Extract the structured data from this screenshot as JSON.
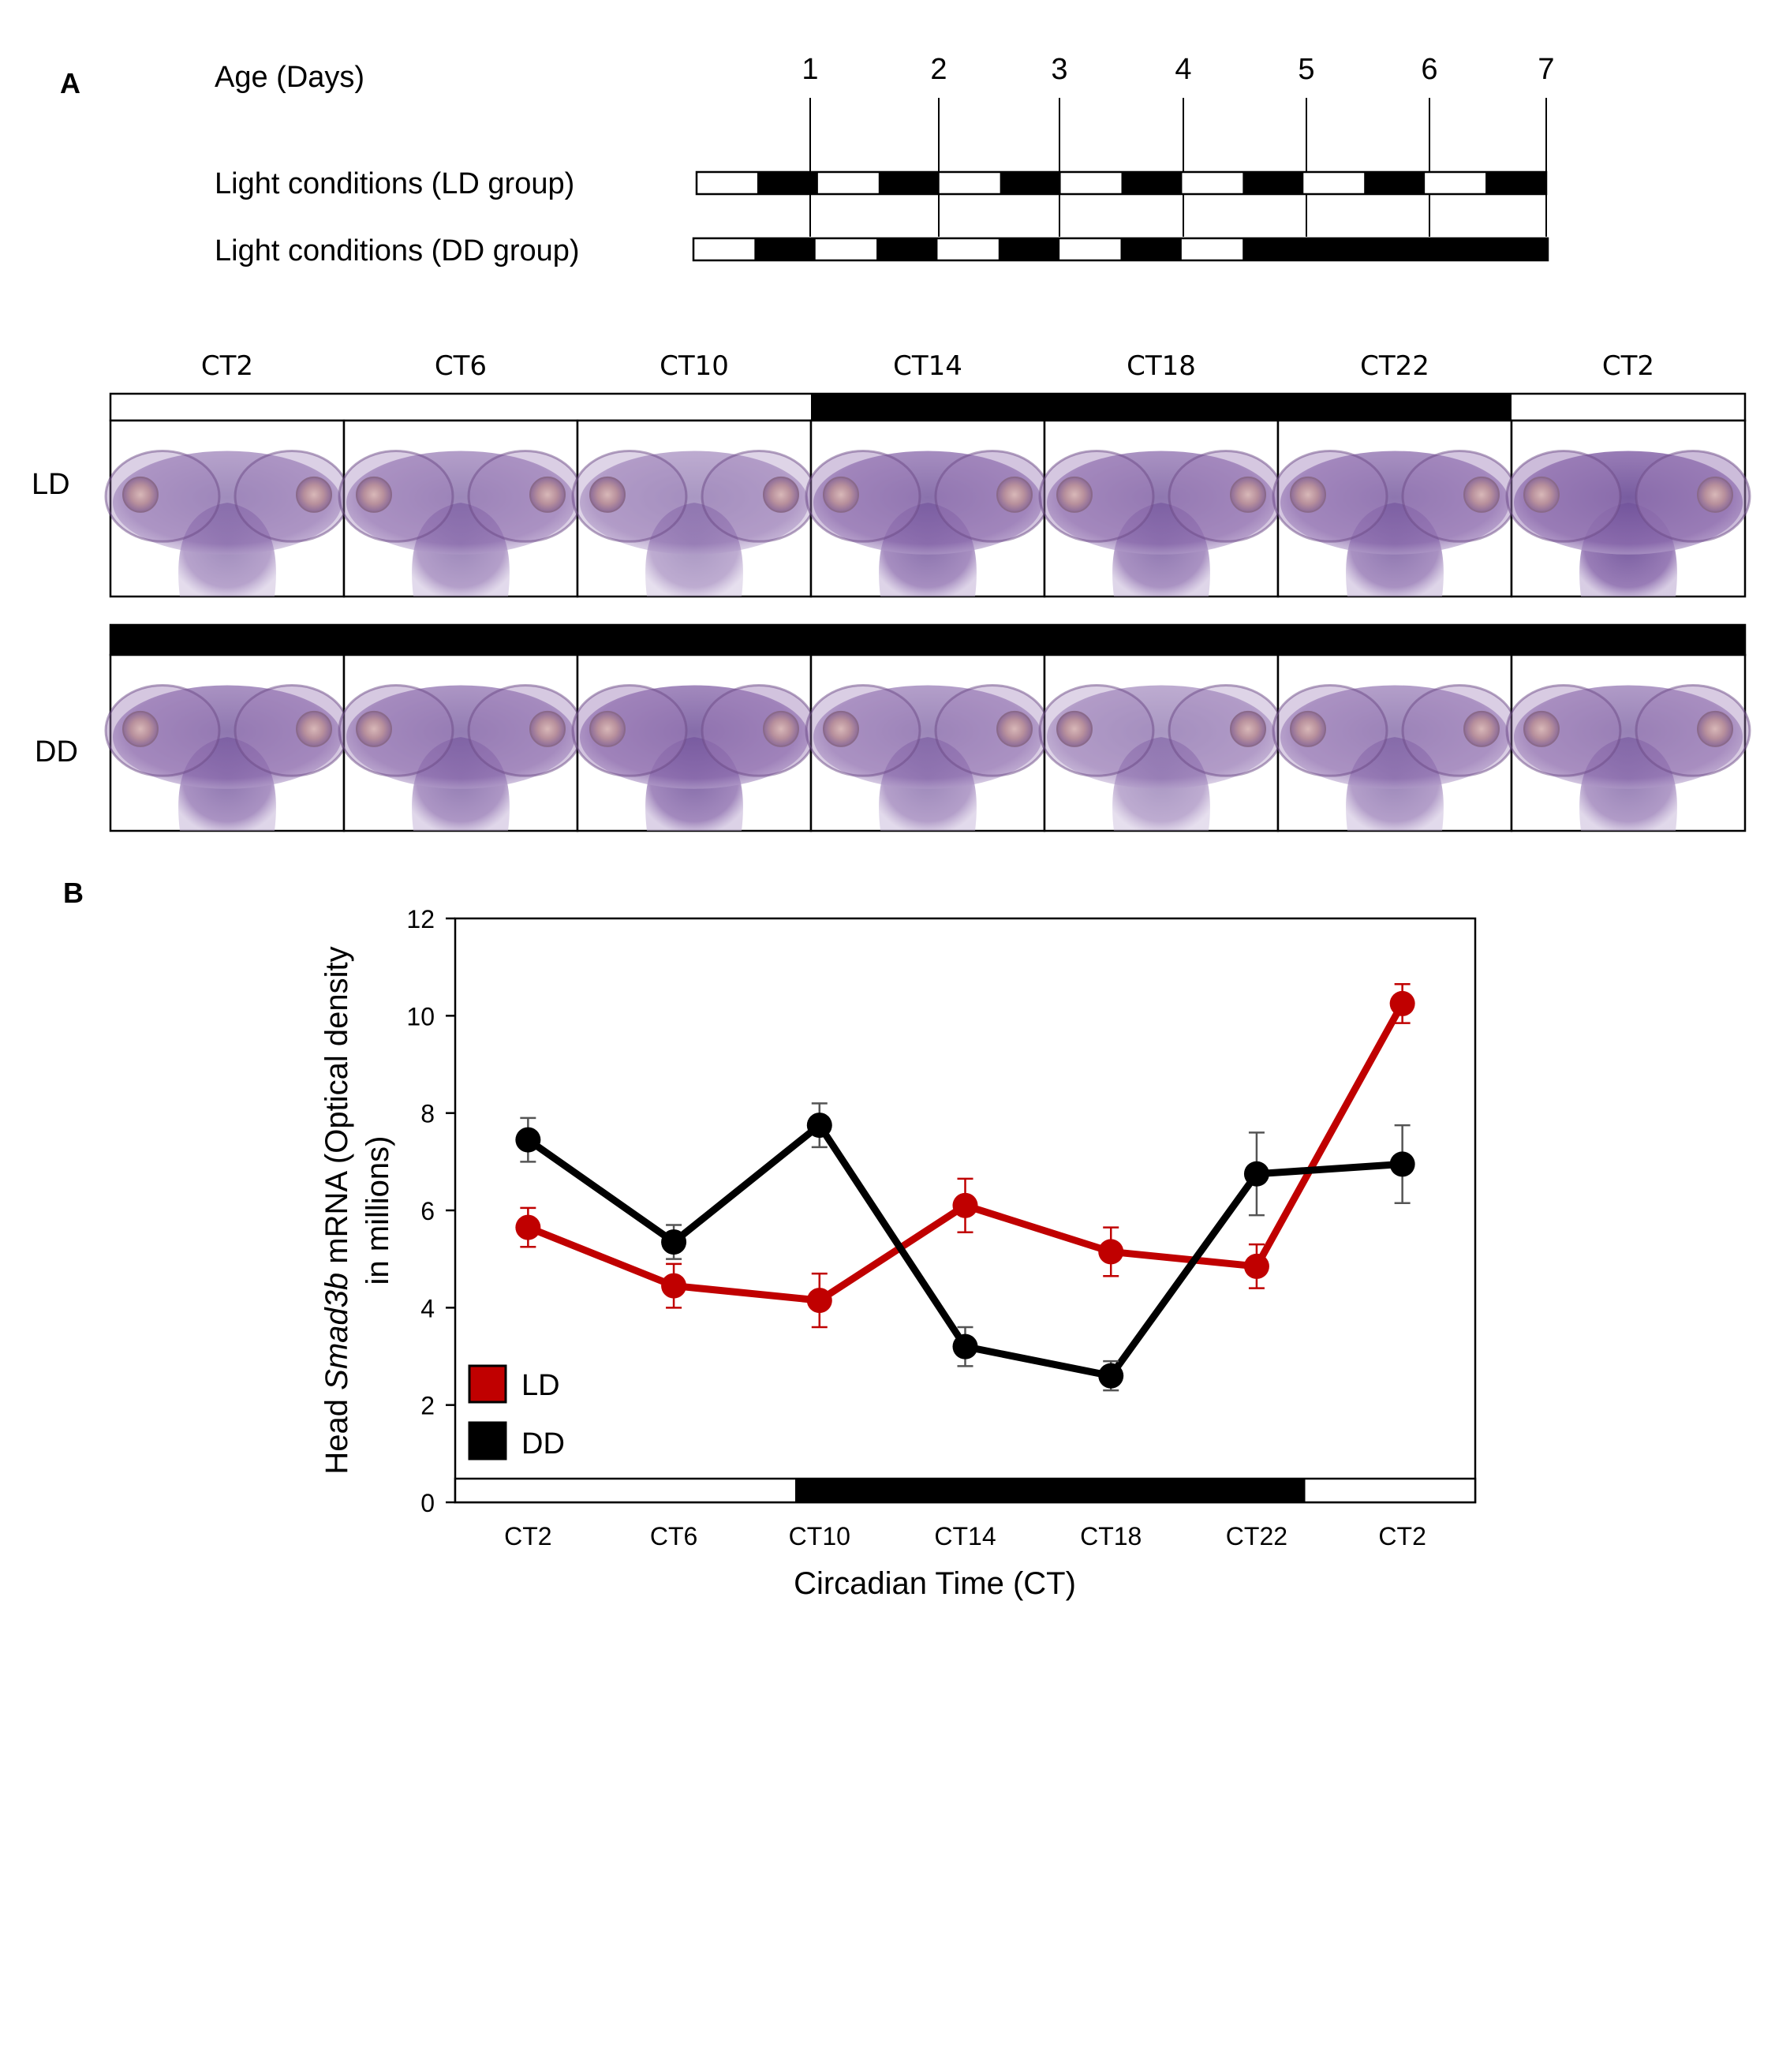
{
  "panel_a": {
    "panel_label": "A",
    "age_label": "Age (Days)",
    "days": [
      "1",
      "2",
      "3",
      "4",
      "5",
      "6",
      "7"
    ],
    "ld_row_label": "Light conditions (LD group)",
    "dd_row_label": "Light conditions (DD group)",
    "ld_schedule": [
      "light",
      "dark",
      "light",
      "dark",
      "light",
      "dark",
      "light",
      "dark",
      "light",
      "dark",
      "light",
      "dark",
      "light",
      "dark"
    ],
    "dd_schedule": [
      "light",
      "dark",
      "light",
      "dark",
      "light",
      "dark",
      "light",
      "dark",
      "light",
      "dark",
      "dark",
      "dark",
      "dark",
      "dark"
    ],
    "timepoints": [
      "CT2",
      "CT6",
      "CT10",
      "CT14",
      "CT18",
      "CT22",
      "CT2"
    ],
    "ld_bar": [
      "light",
      "light",
      "light",
      "dark",
      "dark",
      "dark",
      "light"
    ],
    "dd_bar": [
      "dark",
      "dark",
      "dark",
      "dark",
      "dark",
      "dark",
      "dark"
    ],
    "rows": [
      {
        "label": "LD",
        "stain_intensity": [
          0.5,
          0.55,
          0.4,
          0.75,
          0.7,
          0.72,
          0.95
        ]
      },
      {
        "label": "DD",
        "stain_intensity": [
          0.7,
          0.65,
          0.8,
          0.55,
          0.4,
          0.55,
          0.6
        ]
      }
    ],
    "colors": {
      "stain": "#7c5a9c",
      "eye": "#b88a98",
      "background": "#ffffff"
    }
  },
  "chart_data": {
    "panel_label": "B",
    "type": "line",
    "categories": [
      "CT2",
      "CT6",
      "CT10",
      "CT14",
      "CT18",
      "CT22",
      "CT2"
    ],
    "series": [
      {
        "name": "LD",
        "color": "#c00000",
        "values": [
          5.65,
          4.45,
          4.15,
          6.1,
          5.15,
          4.85,
          10.25
        ],
        "error": [
          0.4,
          0.45,
          0.55,
          0.55,
          0.5,
          0.45,
          0.4
        ]
      },
      {
        "name": "DD",
        "color": "#000000",
        "values": [
          7.45,
          5.35,
          7.75,
          3.2,
          2.6,
          6.75,
          6.95
        ],
        "error": [
          0.45,
          0.35,
          0.45,
          0.4,
          0.3,
          0.85,
          0.8
        ]
      }
    ],
    "ylim": [
      0,
      12
    ],
    "yticks": [
      "0",
      "2",
      "4",
      "6",
      "8",
      "10",
      "12"
    ],
    "ylabel_parts": [
      "Head ",
      "Smad3b",
      " mRNA (Optical density"
    ],
    "ylabel_line2": "in millions)",
    "xlabel": "Circadian Time (CT)",
    "light_bar": [
      "light",
      "light",
      "dark",
      "dark",
      "dark",
      "light"
    ],
    "legend_position": "bottom-left",
    "grid": false
  }
}
